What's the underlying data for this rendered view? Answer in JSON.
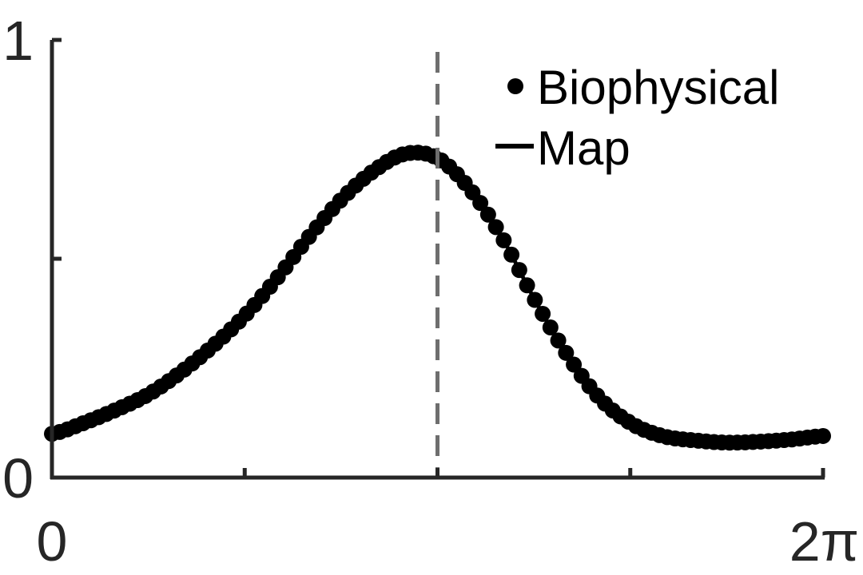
{
  "chart_data": {
    "type": "scatter",
    "title": "",
    "xlabel": "",
    "ylabel": "",
    "xlim": [
      0,
      6.2832
    ],
    "ylim": [
      0,
      1
    ],
    "x_ticks": [
      0,
      1.5708,
      3.1416,
      4.7124,
      6.2832
    ],
    "x_tick_labels": [
      "0",
      "",
      "",
      "",
      "2π"
    ],
    "y_ticks": [
      0,
      0.5,
      1
    ],
    "y_tick_labels": [
      "0",
      "",
      "1"
    ],
    "grid": false,
    "legend_position": "top-right",
    "reference_line": {
      "x": 3.1416,
      "style": "dashed",
      "color": "#6e6e6e"
    },
    "series": [
      {
        "name": "Biophysical",
        "style": "markers",
        "color": "#000000",
        "x": [
          0,
          0.2618,
          0.5236,
          0.7854,
          1.0472,
          1.309,
          1.5708,
          1.8326,
          2.0944,
          2.3562,
          2.618,
          2.8798,
          3.1416,
          3.4034,
          3.6652,
          3.927,
          4.1888,
          4.4506,
          4.7124,
          4.9742,
          5.236,
          5.4978,
          5.7596,
          6.0214,
          6.2832
        ],
        "y": [
          0.1,
          0.125,
          0.155,
          0.19,
          0.24,
          0.3,
          0.37,
          0.455,
          0.55,
          0.635,
          0.7,
          0.74,
          0.73,
          0.66,
          0.55,
          0.41,
          0.285,
          0.185,
          0.125,
          0.095,
          0.085,
          0.08,
          0.082,
          0.087,
          0.095
        ]
      },
      {
        "name": "Map",
        "style": "line",
        "color": "#000000",
        "x": [
          0,
          0.2618,
          0.5236,
          0.7854,
          1.0472,
          1.309,
          1.5708,
          1.8326,
          2.0944,
          2.3562,
          2.618,
          2.8798,
          3.1416,
          3.4034,
          3.6652,
          3.927,
          4.1888,
          4.4506,
          4.7124,
          4.9742,
          5.236,
          5.4978,
          5.7596,
          6.0214,
          6.2832
        ],
        "y": [
          0.1,
          0.125,
          0.155,
          0.19,
          0.24,
          0.3,
          0.37,
          0.455,
          0.55,
          0.635,
          0.7,
          0.74,
          0.73,
          0.66,
          0.55,
          0.41,
          0.285,
          0.185,
          0.125,
          0.095,
          0.085,
          0.08,
          0.082,
          0.087,
          0.095
        ]
      }
    ]
  }
}
